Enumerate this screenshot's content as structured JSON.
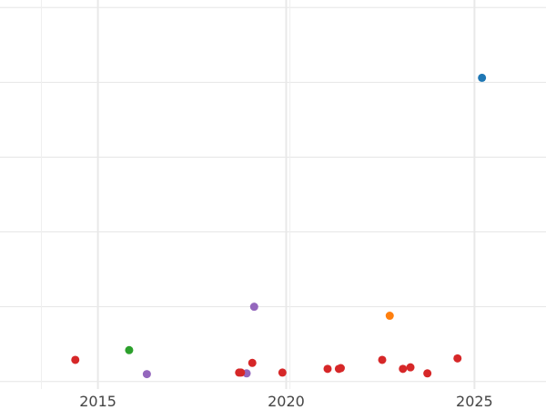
{
  "chart_data": {
    "type": "scatter",
    "title": "",
    "xlabel": "",
    "ylabel": "",
    "x_ticks": [
      2015,
      2020,
      2025
    ],
    "x_tick_labels": [
      "2015",
      "2020",
      "2025"
    ],
    "xlim": [
      2012.4,
      2026.9
    ],
    "ylim": [
      -0.1,
      5.1
    ],
    "y_gridlines": [
      0,
      1,
      2,
      3,
      4,
      5
    ],
    "minor_x_gridlines": [
      2013.5,
      2020.1
    ],
    "grid": true,
    "legend": "none",
    "series": [
      {
        "color": "#1f77b4",
        "points": [
          [
            2025.2,
            4.06
          ]
        ]
      },
      {
        "color": "#ff7f0e",
        "points": [
          [
            2022.75,
            0.88
          ]
        ]
      },
      {
        "color": "#2ca02c",
        "points": [
          [
            2015.83,
            0.42
          ]
        ]
      },
      {
        "color": "#9467bd",
        "points": [
          [
            2019.15,
            1.0
          ],
          [
            2016.3,
            0.1
          ],
          [
            2018.95,
            0.11
          ]
        ]
      },
      {
        "color": "#d62728",
        "points": [
          [
            2014.4,
            0.29
          ],
          [
            2018.75,
            0.12
          ],
          [
            2018.8,
            0.12
          ],
          [
            2019.1,
            0.25
          ],
          [
            2019.9,
            0.12
          ],
          [
            2021.1,
            0.17
          ],
          [
            2021.4,
            0.17
          ],
          [
            2021.45,
            0.18
          ],
          [
            2022.55,
            0.29
          ],
          [
            2023.1,
            0.17
          ],
          [
            2023.3,
            0.19
          ],
          [
            2023.75,
            0.11
          ],
          [
            2024.55,
            0.31
          ]
        ]
      }
    ]
  }
}
